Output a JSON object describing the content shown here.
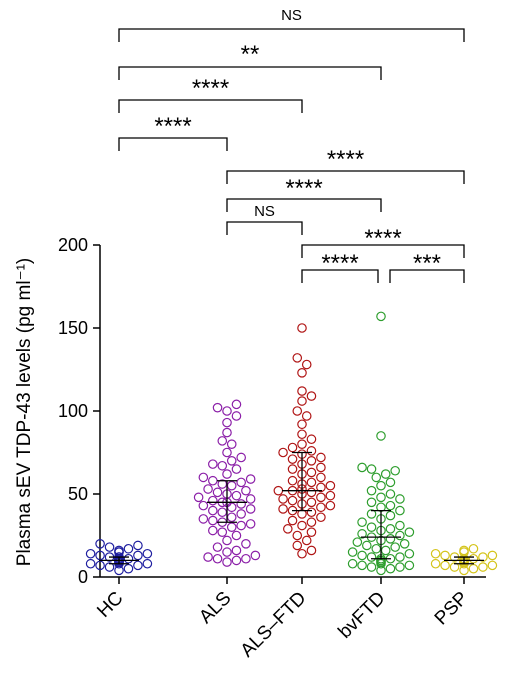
{
  "chart_data": {
    "type": "scatter",
    "subtype": "dot-plot-with-median-and-iqr",
    "ylabel": "Plasma sEV TDP-43 levels (pg ml⁻¹)",
    "ylim": [
      0,
      200
    ],
    "yticks": [
      0,
      50,
      100,
      150,
      200
    ],
    "categories": [
      "HC",
      "ALS",
      "ALS–FTD",
      "bvFTD",
      "PSP"
    ],
    "series": [
      {
        "color": "#1f1fa0",
        "median": 10,
        "q1": 8,
        "q3": 12,
        "values": [
          4,
          5,
          6,
          7,
          7,
          8,
          8,
          8,
          9,
          9,
          9,
          9,
          10,
          10,
          10,
          10,
          10,
          11,
          11,
          11,
          11,
          12,
          12,
          12,
          13,
          13,
          14,
          14,
          15,
          15,
          16,
          17,
          18,
          19,
          20
        ]
      },
      {
        "color": "#8b1fa8",
        "median": 45,
        "q1": 33,
        "q3": 58,
        "values": [
          9,
          10,
          11,
          11,
          12,
          13,
          15,
          16,
          18,
          20,
          22,
          25,
          27,
          28,
          30,
          31,
          32,
          33,
          34,
          35,
          36,
          38,
          39,
          40,
          41,
          42,
          43,
          44,
          45,
          45,
          46,
          47,
          48,
          49,
          50,
          51,
          52,
          53,
          55,
          56,
          57,
          58,
          59,
          60,
          62,
          65,
          67,
          68,
          70,
          72,
          75,
          80,
          82,
          87,
          93,
          97,
          100,
          102,
          104
        ]
      },
      {
        "color": "#b01515",
        "median": 52,
        "q1": 40,
        "q3": 75,
        "values": [
          14,
          16,
          19,
          22,
          25,
          27,
          29,
          31,
          33,
          34,
          36,
          38,
          39,
          40,
          41,
          42,
          43,
          44,
          45,
          46,
          47,
          48,
          49,
          50,
          51,
          52,
          52,
          53,
          54,
          55,
          56,
          57,
          58,
          60,
          62,
          63,
          65,
          66,
          68,
          70,
          71,
          72,
          74,
          75,
          76,
          78,
          80,
          83,
          86,
          92,
          97,
          100,
          106,
          109,
          112,
          123,
          128,
          132,
          150
        ]
      },
      {
        "color": "#2e9e2e",
        "median": 24,
        "q1": 11,
        "q3": 40,
        "values": [
          4,
          5,
          6,
          6,
          7,
          7,
          8,
          8,
          9,
          9,
          10,
          10,
          11,
          11,
          12,
          12,
          13,
          14,
          15,
          16,
          17,
          18,
          19,
          20,
          21,
          22,
          23,
          24,
          25,
          26,
          27,
          28,
          29,
          30,
          31,
          33,
          35,
          37,
          38,
          40,
          42,
          43,
          45,
          47,
          48,
          50,
          52,
          55,
          57,
          60,
          62,
          64,
          65,
          66,
          85,
          157
        ]
      },
      {
        "color": "#d4c41a",
        "median": 10,
        "q1": 8,
        "q3": 12,
        "values": [
          4,
          5,
          6,
          6,
          7,
          7,
          8,
          8,
          9,
          9,
          9,
          10,
          10,
          10,
          11,
          11,
          11,
          12,
          12,
          13,
          13,
          14,
          15,
          16,
          17
        ]
      }
    ],
    "comparisons": [
      {
        "from": 0,
        "to": 4,
        "label": "NS"
      },
      {
        "from": 0,
        "to": 3,
        "label": "**"
      },
      {
        "from": 0,
        "to": 2,
        "label": "****"
      },
      {
        "from": 0,
        "to": 1,
        "label": "****"
      },
      {
        "from": 1,
        "to": 4,
        "label": "****"
      },
      {
        "from": 1,
        "to": 3,
        "label": "****"
      },
      {
        "from": 1,
        "to": 2,
        "label": "NS"
      },
      {
        "from": 2,
        "to": 4,
        "label": "****"
      },
      {
        "from": 2,
        "to": 3,
        "label": "****"
      },
      {
        "from": 3,
        "to": 4,
        "label": "***"
      }
    ]
  }
}
